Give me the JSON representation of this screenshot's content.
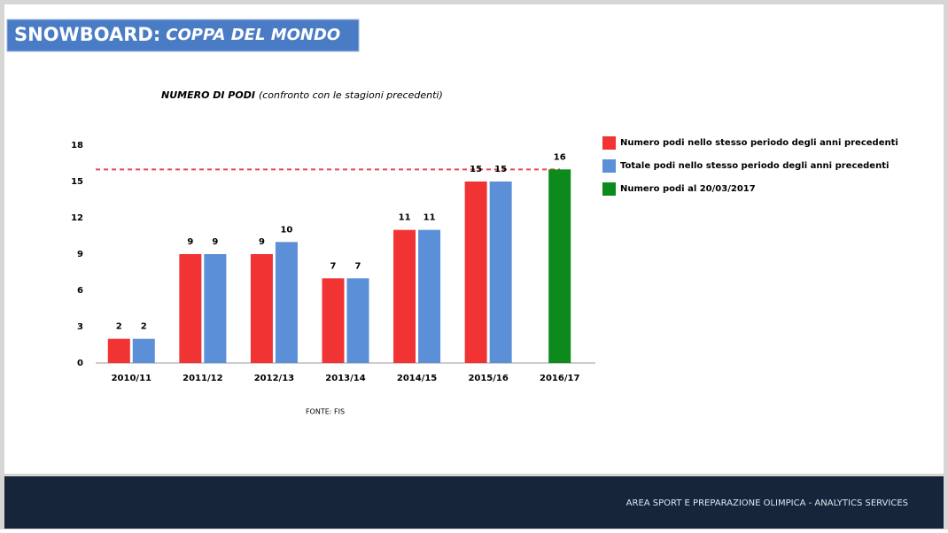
{
  "slide": {
    "title": "SNOWBOARD",
    "title_colon": ":",
    "title_italic": "COPPA DEL MONDO",
    "source": "FONTE: FIS",
    "footer": "AREA SPORT E PREPARAZIONE OLIMPICA - ANALYTICS SERVICES"
  },
  "chart_data": {
    "type": "bar",
    "title": "NUMERO DI PODI",
    "subtitle": "(confronto con le stagioni precedenti)",
    "categories": [
      "2010/11",
      "2011/12",
      "2012/13",
      "2013/14",
      "2014/15",
      "2015/16",
      "2016/17"
    ],
    "series": [
      {
        "name": "Numero podi nello stesso periodo degli anni precedenti",
        "color": "#f23333",
        "values": [
          2,
          9,
          9,
          7,
          11,
          15,
          null
        ]
      },
      {
        "name": "Totale podi nello stesso periodo degli anni precedenti",
        "color": "#5b8fd8",
        "values": [
          2,
          9,
          10,
          7,
          11,
          15,
          null
        ]
      },
      {
        "name": "Numero podi al 20/03/2017",
        "color": "#0c8a1c",
        "values": [
          null,
          null,
          null,
          null,
          null,
          null,
          16
        ]
      }
    ],
    "reference_line": {
      "value": 16,
      "color": "#e84a4a"
    },
    "ylim": [
      0,
      18
    ],
    "yticks": [
      0,
      3,
      6,
      9,
      12,
      15,
      18
    ],
    "grid": false,
    "legend": "right"
  }
}
